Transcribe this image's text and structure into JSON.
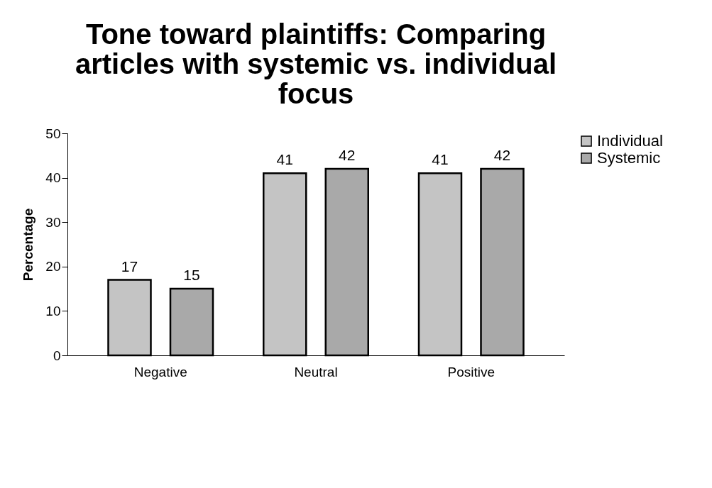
{
  "chart_data": {
    "type": "bar",
    "title": "Tone toward plaintiffs: Comparing articles with systemic vs. individual focus",
    "ylabel": "Percentage",
    "categories": [
      "Negative",
      "Neutral",
      "Positive"
    ],
    "series": [
      {
        "name": "Individual",
        "color": "#c4c4c4",
        "values": [
          17,
          41,
          41
        ]
      },
      {
        "name": "Systemic",
        "color": "#a9a9a9",
        "values": [
          15,
          42,
          42
        ]
      }
    ],
    "ylim": [
      0,
      50
    ],
    "yticks": [
      0,
      10,
      20,
      30,
      40,
      50
    ],
    "grid": false,
    "legend": "right",
    "data_labels": true
  }
}
